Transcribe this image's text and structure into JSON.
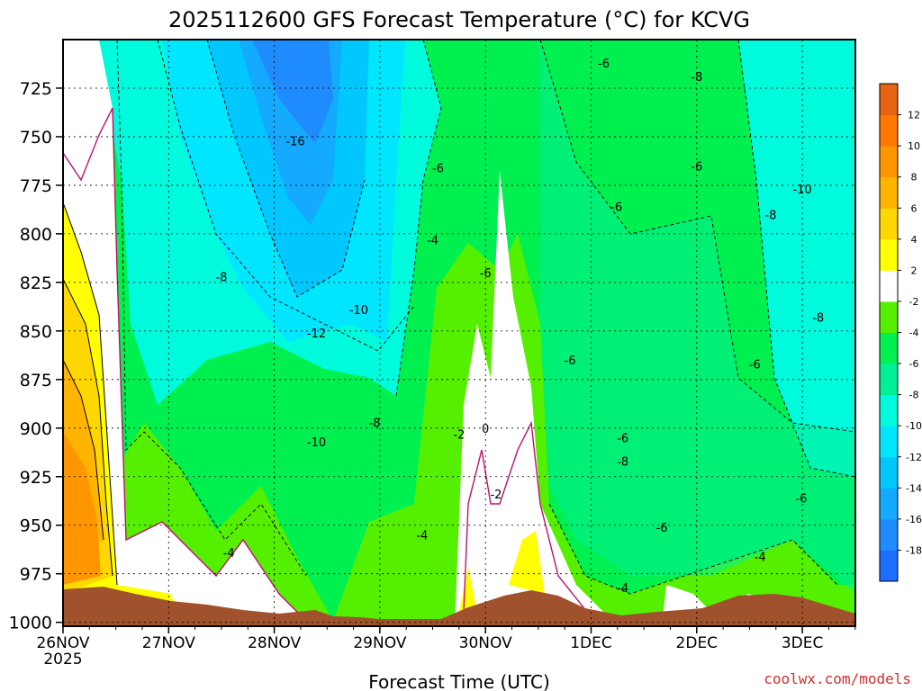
{
  "chart_data": {
    "type": "heatmap",
    "title": "2025112600 GFS Forecast Temperature (°C) for KCVG",
    "xlabel": "Forecast Time (UTC)",
    "ylabel": "",
    "credit": "coolwx.com/models",
    "x_ticks": [
      "26NOV",
      "27NOV",
      "28NOV",
      "29NOV",
      "30NOV",
      "1DEC",
      "2DEC",
      "3DEC"
    ],
    "x_year_label": "2025",
    "xlim_days": [
      0,
      7.5
    ],
    "y_ticks": [
      725,
      750,
      775,
      800,
      825,
      850,
      875,
      900,
      925,
      950,
      975,
      1000
    ],
    "ylim": [
      1002,
      700
    ],
    "colorbar": {
      "levels": [
        -20,
        -18,
        -16,
        -14,
        -12,
        -10,
        -8,
        -6,
        -4,
        -2,
        2,
        4,
        6,
        8,
        10,
        12,
        14
      ],
      "tick_labels": [
        "12",
        "10",
        "8",
        "6",
        "4",
        "2",
        "-2",
        "-4",
        "-6",
        "-8",
        "-10",
        "-12",
        "-14",
        "-16",
        "-18"
      ],
      "colors": [
        "#1e6eff",
        "#1e8cff",
        "#14aaff",
        "#00c8ff",
        "#00e6ff",
        "#00fadc",
        "#00f096",
        "#00f050",
        "#55f000",
        "#ffffff",
        "#ffff00",
        "#ffd700",
        "#ffb400",
        "#ff9600",
        "#ff7800",
        "#e66414"
      ]
    },
    "contour_labels": [
      {
        "text": "-16",
        "x": 2.2,
        "p": 752
      },
      {
        "text": "-8",
        "x": 1.5,
        "p": 822
      },
      {
        "text": "-10",
        "x": 2.8,
        "p": 839
      },
      {
        "text": "-12",
        "x": 2.4,
        "p": 851
      },
      {
        "text": "-10",
        "x": 2.4,
        "p": 907
      },
      {
        "text": "-8",
        "x": 2.95,
        "p": 897
      },
      {
        "text": "-6",
        "x": 3.55,
        "p": 766
      },
      {
        "text": "-4",
        "x": 3.5,
        "p": 803
      },
      {
        "text": "-6",
        "x": 4.0,
        "p": 820
      },
      {
        "text": "-2",
        "x": 3.75,
        "p": 903
      },
      {
        "text": "0",
        "x": 4.0,
        "p": 900
      },
      {
        "text": "-2",
        "x": 4.1,
        "p": 934
      },
      {
        "text": "-4",
        "x": 3.4,
        "p": 955
      },
      {
        "text": "-4",
        "x": 1.57,
        "p": 964
      },
      {
        "text": "-6",
        "x": 5.12,
        "p": 712
      },
      {
        "text": "-8",
        "x": 6.0,
        "p": 719
      },
      {
        "text": "-6",
        "x": 5.24,
        "p": 786
      },
      {
        "text": "-6",
        "x": 6.0,
        "p": 765
      },
      {
        "text": "-10",
        "x": 7.0,
        "p": 777
      },
      {
        "text": "-8",
        "x": 6.7,
        "p": 790
      },
      {
        "text": "-8",
        "x": 7.15,
        "p": 843
      },
      {
        "text": "-6",
        "x": 4.8,
        "p": 865
      },
      {
        "text": "-6",
        "x": 5.3,
        "p": 905
      },
      {
        "text": "-8",
        "x": 5.3,
        "p": 917
      },
      {
        "text": "-6",
        "x": 6.55,
        "p": 867
      },
      {
        "text": "-6",
        "x": 6.99,
        "p": 936
      },
      {
        "text": "-6",
        "x": 5.67,
        "p": 951
      },
      {
        "text": "-4",
        "x": 6.6,
        "p": 966
      },
      {
        "text": "-4",
        "x": 5.3,
        "p": 982
      }
    ]
  }
}
